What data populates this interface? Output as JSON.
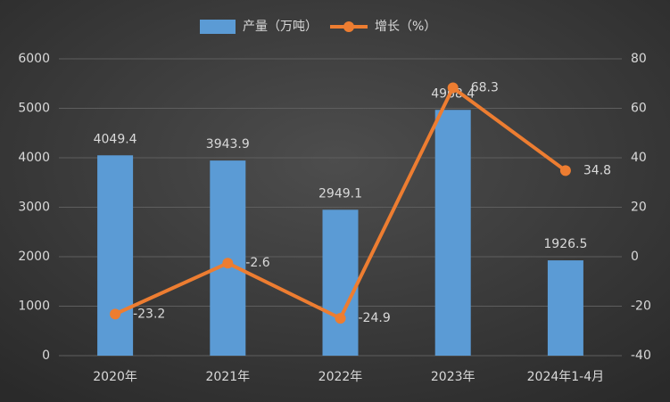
{
  "chart_data": {
    "type": "bar",
    "categories": [
      "2020年",
      "2021年",
      "2022年",
      "2023年",
      "2024年1-4月"
    ],
    "series": [
      {
        "name": "产量（万吨）",
        "type": "bar",
        "color": "#5b9bd5",
        "values": [
          4049.4,
          3943.9,
          2949.1,
          4968.4,
          1926.5
        ]
      },
      {
        "name": "增长（%）",
        "type": "line",
        "axis": "y2",
        "color": "#ed7d31",
        "values": [
          -23.2,
          -2.6,
          -24.9,
          68.3,
          34.8
        ]
      }
    ],
    "ylim": [
      0,
      6000
    ],
    "yticks": [
      0,
      1000,
      2000,
      3000,
      4000,
      5000,
      6000
    ],
    "y2lim": [
      -40,
      80
    ],
    "y2ticks": [
      -40,
      -20,
      0,
      20,
      40,
      60,
      80
    ],
    "grid": true
  }
}
